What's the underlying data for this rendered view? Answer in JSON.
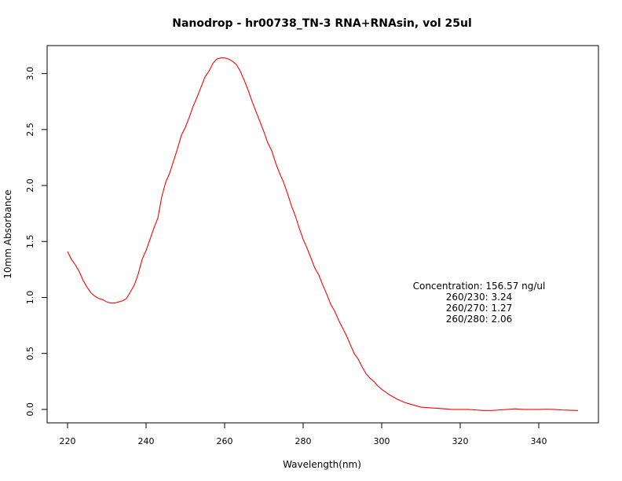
{
  "chart_data": {
    "type": "line",
    "title": "Nanodrop - hr00738_TN-3 RNA+RNAsin, vol 25ul",
    "xlabel": "Wavelength(nm)",
    "ylabel": "10mm Absorbance",
    "xlim": [
      220,
      350
    ],
    "ylim": [
      -0.12,
      3.25
    ],
    "xticks": [
      220,
      240,
      260,
      280,
      300,
      320,
      340
    ],
    "xtick_labels": [
      "220",
      "240",
      "260",
      "280",
      "300",
      "320",
      "340"
    ],
    "yticks": [
      0.0,
      0.5,
      1.0,
      1.5,
      2.0,
      2.5,
      3.0
    ],
    "ytick_labels": [
      "0.0",
      "0.5",
      "1.0",
      "1.5",
      "2.0",
      "2.5",
      "3.0"
    ],
    "grid": false,
    "line_color": "#ff0000",
    "series": [
      {
        "x": [
          220,
          221,
          222,
          223,
          224,
          225,
          226,
          227,
          228,
          229,
          230,
          231,
          232,
          233,
          234,
          235,
          236,
          237,
          238,
          239,
          240,
          241,
          242,
          243,
          244,
          245,
          246,
          247,
          248,
          249,
          250,
          251,
          252,
          253,
          254,
          255,
          256,
          257,
          258,
          259,
          260,
          261,
          262,
          263,
          264,
          265,
          266,
          267,
          268,
          269,
          270,
          271,
          272,
          273,
          274,
          275,
          276,
          277,
          278,
          279,
          280,
          281,
          282,
          283,
          284,
          285,
          286,
          287,
          288,
          289,
          290,
          291,
          292,
          293,
          294,
          295,
          296,
          297,
          298,
          299,
          300,
          302,
          304,
          306,
          308,
          310,
          312,
          314,
          316,
          318,
          320,
          322,
          324,
          326,
          328,
          330,
          332,
          334,
          336,
          338,
          340,
          342,
          344,
          346,
          348,
          350
        ],
        "y": [
          1.41,
          1.34,
          1.29,
          1.23,
          1.15,
          1.09,
          1.04,
          1.01,
          0.99,
          0.98,
          0.96,
          0.95,
          0.95,
          0.96,
          0.97,
          0.99,
          1.05,
          1.11,
          1.21,
          1.34,
          1.42,
          1.52,
          1.62,
          1.71,
          1.9,
          2.03,
          2.11,
          2.22,
          2.33,
          2.45,
          2.52,
          2.61,
          2.71,
          2.79,
          2.88,
          2.97,
          3.02,
          3.09,
          3.13,
          3.14,
          3.14,
          3.13,
          3.11,
          3.08,
          3.02,
          2.94,
          2.85,
          2.75,
          2.66,
          2.57,
          2.48,
          2.38,
          2.31,
          2.2,
          2.11,
          2.03,
          1.93,
          1.82,
          1.73,
          1.62,
          1.52,
          1.44,
          1.35,
          1.26,
          1.2,
          1.11,
          1.03,
          0.94,
          0.88,
          0.8,
          0.73,
          0.66,
          0.58,
          0.5,
          0.45,
          0.38,
          0.32,
          0.28,
          0.25,
          0.21,
          0.18,
          0.13,
          0.09,
          0.06,
          0.04,
          0.02,
          0.015,
          0.01,
          0.005,
          0.0,
          0.0,
          0.0,
          -0.005,
          -0.01,
          -0.01,
          -0.005,
          0.0,
          0.005,
          0.0,
          0.0,
          0.0,
          0.002,
          0.0,
          -0.005,
          -0.008,
          -0.01
        ]
      }
    ],
    "annotations": [
      {
        "text": "Concentration: 156.57 ng/ul"
      },
      {
        "text": "260/230: 3.24"
      },
      {
        "text": "260/270: 1.27"
      },
      {
        "text": "260/280: 2.06"
      }
    ]
  }
}
